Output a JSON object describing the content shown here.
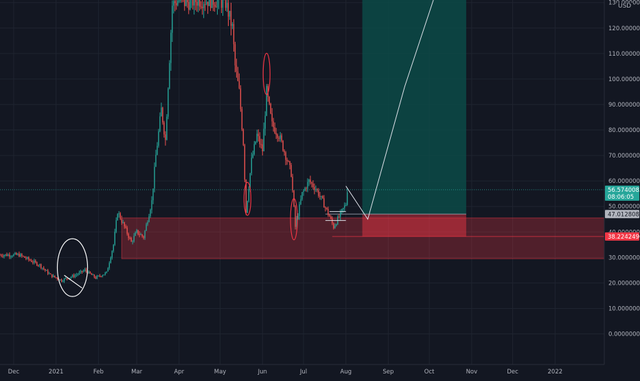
{
  "chart_data": {
    "type": "candlestick",
    "currency": "USD",
    "ylim": [
      -12,
      131
    ],
    "y_ticks": [
      {
        "value": 130,
        "label": "130.0000000"
      },
      {
        "value": 120,
        "label": "120.0000000"
      },
      {
        "value": 110,
        "label": "110.0000000"
      },
      {
        "value": 100,
        "label": "100.0000000"
      },
      {
        "value": 90,
        "label": "90.0000000"
      },
      {
        "value": 80,
        "label": "80.0000000"
      },
      {
        "value": 70,
        "label": "70.0000000"
      },
      {
        "value": 60,
        "label": "60.0000000"
      },
      {
        "value": 50,
        "label": "50.0000000"
      },
      {
        "value": 40,
        "label": "40.0000000"
      },
      {
        "value": 30,
        "label": "30.0000000"
      },
      {
        "value": 20,
        "label": "20.0000000"
      },
      {
        "value": 10,
        "label": "10.0000000"
      },
      {
        "value": 0,
        "label": "0.0000000"
      }
    ],
    "x_range": [
      "2020-11-21",
      "2022-02-06"
    ],
    "x_ticks": [
      {
        "date": "2020-12-01",
        "label": "Dec"
      },
      {
        "date": "2021-01-01",
        "label": "2021"
      },
      {
        "date": "2021-02-01",
        "label": "Feb"
      },
      {
        "date": "2021-03-01",
        "label": "Mar"
      },
      {
        "date": "2021-04-01",
        "label": "Apr"
      },
      {
        "date": "2021-05-01",
        "label": "May"
      },
      {
        "date": "2021-06-01",
        "label": "Jun"
      },
      {
        "date": "2021-07-01",
        "label": "Jul"
      },
      {
        "date": "2021-08-01",
        "label": "Aug"
      },
      {
        "date": "2021-09-01",
        "label": "Sep"
      },
      {
        "date": "2021-10-01",
        "label": "Oct"
      },
      {
        "date": "2021-11-01",
        "label": "Nov"
      },
      {
        "date": "2021-12-01",
        "label": "Dec"
      },
      {
        "date": "2022-01-01",
        "label": "2022"
      }
    ],
    "price_path": [
      [
        "2020-11-21",
        31
      ],
      [
        "2020-12-05",
        31
      ],
      [
        "2020-12-20",
        27
      ],
      [
        "2020-12-28",
        23
      ],
      [
        "2021-01-05",
        21
      ],
      [
        "2021-01-15",
        23
      ],
      [
        "2021-01-22",
        25
      ],
      [
        "2021-01-30",
        22
      ],
      [
        "2021-02-07",
        24
      ],
      [
        "2021-02-12",
        35
      ],
      [
        "2021-02-15",
        48
      ],
      [
        "2021-02-20",
        42
      ],
      [
        "2021-02-25",
        36
      ],
      [
        "2021-03-01",
        40
      ],
      [
        "2021-03-06",
        38
      ],
      [
        "2021-03-12",
        52
      ],
      [
        "2021-03-15",
        70
      ],
      [
        "2021-03-19",
        88
      ],
      [
        "2021-03-22",
        76
      ],
      [
        "2021-03-24",
        98
      ],
      [
        "2021-03-27",
        129
      ],
      [
        "2021-03-31",
        131
      ],
      [
        "2021-04-05",
        130
      ],
      [
        "2021-04-15",
        131
      ],
      [
        "2021-04-25",
        131
      ],
      [
        "2021-05-05",
        130
      ],
      [
        "2021-05-10",
        120
      ],
      [
        "2021-05-12",
        105
      ],
      [
        "2021-05-15",
        95
      ],
      [
        "2021-05-18",
        75
      ],
      [
        "2021-05-20",
        48
      ],
      [
        "2021-05-24",
        68
      ],
      [
        "2021-05-28",
        78
      ],
      [
        "2021-06-01",
        72
      ],
      [
        "2021-06-04",
        95
      ],
      [
        "2021-06-08",
        82
      ],
      [
        "2021-06-13",
        78
      ],
      [
        "2021-06-18",
        70
      ],
      [
        "2021-06-22",
        63
      ],
      [
        "2021-06-25",
        42
      ],
      [
        "2021-06-30",
        55
      ],
      [
        "2021-07-05",
        60
      ],
      [
        "2021-07-10",
        57
      ],
      [
        "2021-07-15",
        52
      ],
      [
        "2021-07-20",
        46
      ],
      [
        "2021-07-23",
        42
      ],
      [
        "2021-07-27",
        46
      ],
      [
        "2021-08-01",
        51
      ],
      [
        "2021-08-02",
        56.6
      ]
    ],
    "current_price": {
      "value": 56.5740083,
      "label": "56.5740083",
      "countdown": "08:06:05"
    },
    "stop_level": {
      "value": 38.2242496,
      "label": "38.2242496"
    },
    "entry_level": {
      "value": 47.0128081,
      "label": "47.0128081"
    },
    "demand_zone": {
      "from_date": "2021-02-18",
      "to_date": "2022-02-06",
      "low": 29.5,
      "high": 45.5
    },
    "position_tool": {
      "from_date": "2021-08-13",
      "to_date": "2021-10-28",
      "entry": 47.0128081,
      "stop": 38.2242496,
      "target": 131
    },
    "projection_path": [
      [
        "2021-08-01",
        58
      ],
      [
        "2021-08-17",
        45
      ],
      [
        "2021-09-13",
        97
      ],
      [
        "2021-10-04",
        131
      ]
    ],
    "support_lines": [
      {
        "from_date": "2021-07-17",
        "to_date": "2021-08-01",
        "value": 44.5
      },
      {
        "from_date": "2021-07-20",
        "to_date": "2021-08-01",
        "value": 48
      }
    ],
    "ellipses": [
      {
        "date": "2021-01-13",
        "value": 26,
        "color": "#ffffff"
      },
      {
        "date": "2021-05-21",
        "value": 53,
        "color": "#f23645"
      },
      {
        "date": "2021-06-04",
        "value": 102,
        "color": "#f23645"
      },
      {
        "date": "2021-06-24",
        "value": 45,
        "color": "#f23645"
      }
    ],
    "colors": {
      "background": "#131722",
      "grid": "#1f2430",
      "up": "#26a69a",
      "down": "#ef5350",
      "zone": "#f23645",
      "target_zone": "#0c4a46",
      "axis_text": "#b2b5be"
    }
  }
}
